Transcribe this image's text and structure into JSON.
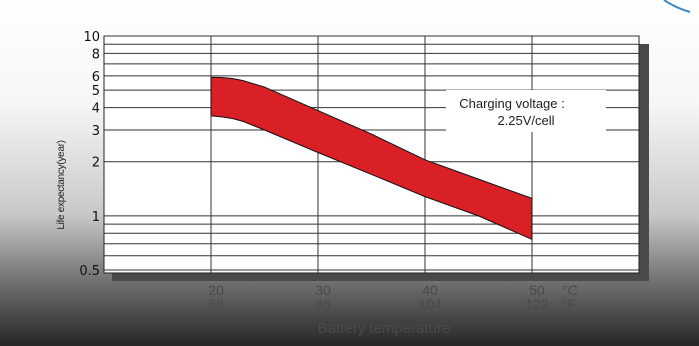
{
  "chart_data": {
    "type": "area",
    "title": "",
    "xlabel": "Battery temperature",
    "ylabel": "Life expectancy(year)",
    "yscale": "log",
    "ylim": [
      0.5,
      10
    ],
    "xlim": [
      10,
      60
    ],
    "y_ticks": [
      0.5,
      1,
      2,
      3,
      4,
      5,
      6,
      8,
      10
    ],
    "y_tick_labels": [
      "0.5",
      "1",
      "2",
      "3",
      "4",
      "5",
      "6",
      "8",
      "10"
    ],
    "y_gridlines": [
      0.5,
      0.6,
      0.7,
      0.8,
      0.9,
      1,
      2,
      3,
      4,
      5,
      6,
      7,
      8,
      9,
      10
    ],
    "x_ticks": [
      20,
      30,
      40,
      50
    ],
    "x_tick_labels_c": [
      "20",
      "30",
      "40",
      "50"
    ],
    "x_tick_labels_f": [
      "68",
      "86",
      "104",
      "122"
    ],
    "x_unit_c": "°C",
    "x_unit_f": "°F",
    "grid": true,
    "annotation": {
      "line1": "Charging voltage :",
      "line2": "2.25V/cell"
    },
    "series": [
      {
        "upper": {
          "x": [
            20,
            21,
            22,
            23,
            25,
            30,
            35,
            40,
            45,
            50
          ],
          "y": [
            5.9,
            5.88,
            5.8,
            5.65,
            5.2,
            3.85,
            2.85,
            2.05,
            1.6,
            1.25
          ]
        },
        "lower": {
          "x": [
            20,
            21,
            22,
            23,
            25,
            30,
            35,
            40,
            45,
            50
          ],
          "y": [
            3.6,
            3.55,
            3.48,
            3.35,
            3.0,
            2.25,
            1.7,
            1.28,
            1.0,
            0.74
          ]
        },
        "color": "#d92027",
        "edge_color": "#111111"
      }
    ]
  }
}
